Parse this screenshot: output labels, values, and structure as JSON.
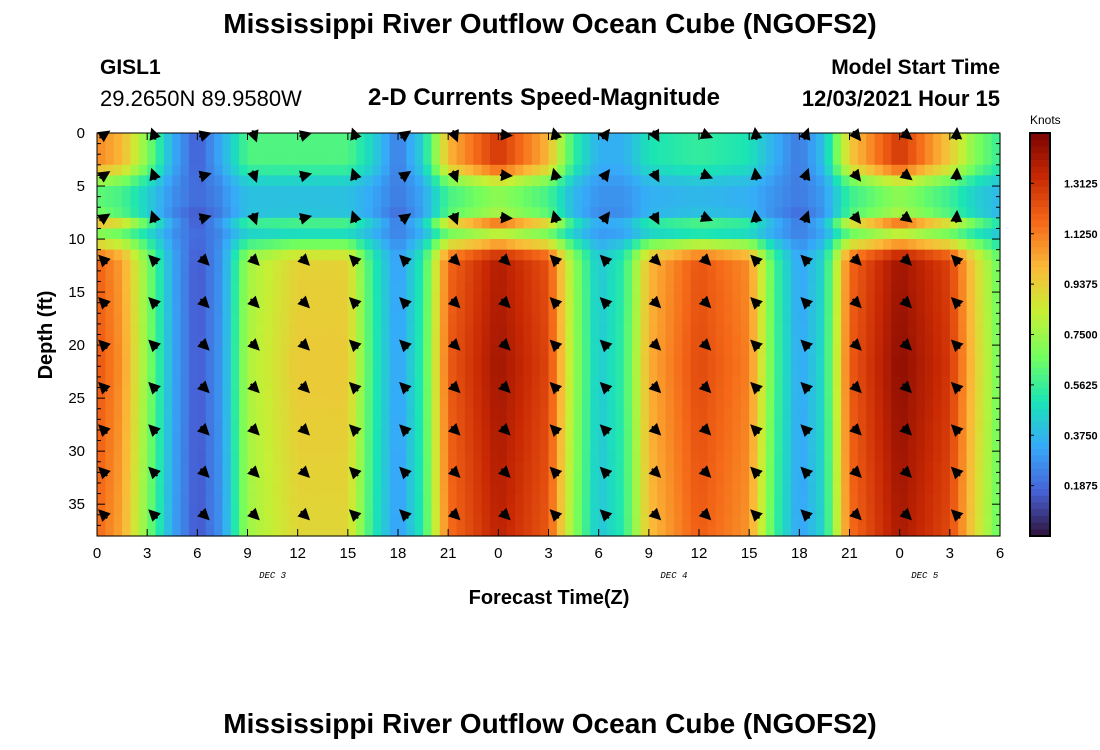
{
  "page": {
    "title_top": "Mississippi River Outflow Ocean Cube (NGOFS2)",
    "title_bottom": "Mississippi River Outflow Ocean Cube (NGOFS2)",
    "station": "GISL1",
    "coords": "29.2650N  89.9580W",
    "panel_title": "2-D Currents Speed-Magnitude",
    "model_start_label": "Model Start Time",
    "model_start_value": "12/03/2021 Hour 15"
  },
  "colors": {
    "colormap": [
      "#30123b",
      "#4662d7",
      "#36aaf9",
      "#1ae4b6",
      "#72fe5e",
      "#c7ef34",
      "#fbb938",
      "#f56918",
      "#c92903",
      "#7a0403"
    ]
  },
  "chart_data": {
    "type": "heatmap",
    "xlabel": "Forecast Time(Z)",
    "ylabel": "Depth (ft)",
    "x_tick_labels": [
      "0",
      "3",
      "6",
      "9",
      "12",
      "15",
      "18",
      "21",
      "0",
      "3",
      "6",
      "9",
      "12",
      "15",
      "18",
      "21",
      "0",
      "3",
      "6"
    ],
    "x_hours": [
      0,
      54
    ],
    "x_tick_step_hours": 3,
    "date_labels": [
      {
        "label": "DEC 3",
        "hour": 10.5
      },
      {
        "label": "DEC 4",
        "hour": 34.5
      },
      {
        "label": "DEC 5",
        "hour": 49.5
      }
    ],
    "y_ticks": [
      0,
      5,
      10,
      15,
      20,
      25,
      30,
      35
    ],
    "y_range": [
      0,
      38
    ],
    "colorbar": {
      "unit": "Knots",
      "min": 0.0,
      "max": 1.5,
      "tick_labels": [
        "1.3125",
        "1.1250",
        "0.9375",
        "0.7500",
        "0.5625",
        "0.3750",
        "0.1875"
      ],
      "tick_values": [
        1.3125,
        1.125,
        0.9375,
        0.75,
        0.5625,
        0.375,
        0.1875
      ]
    },
    "time_profile": {
      "hours": [
        0,
        1.5,
        3,
        4.5,
        6,
        7.5,
        9,
        12,
        15,
        16.5,
        18,
        19.5,
        21,
        24,
        27,
        28.5,
        30,
        31.5,
        33,
        36,
        39,
        40.5,
        42,
        43.5,
        45,
        48,
        51,
        52.5,
        54
      ],
      "deep_speed": [
        1.22,
        1.08,
        0.72,
        0.34,
        0.14,
        0.3,
        0.78,
        0.95,
        0.95,
        0.55,
        0.3,
        0.55,
        1.2,
        1.42,
        1.26,
        0.75,
        0.42,
        0.55,
        1.02,
        1.25,
        1.12,
        0.6,
        0.32,
        0.48,
        1.2,
        1.46,
        1.3,
        0.95,
        0.65
      ],
      "surface_speed": [
        1.1,
        1.0,
        0.7,
        0.35,
        0.15,
        0.35,
        0.6,
        0.6,
        0.6,
        0.45,
        0.22,
        0.45,
        1.0,
        1.3,
        1.0,
        0.55,
        0.35,
        0.35,
        0.5,
        0.55,
        0.5,
        0.35,
        0.22,
        0.4,
        0.95,
        1.3,
        0.95,
        0.7,
        0.55
      ]
    },
    "vector_depths_ft": [
      0,
      4,
      8,
      12,
      16,
      20,
      24,
      28,
      32,
      36
    ]
  }
}
